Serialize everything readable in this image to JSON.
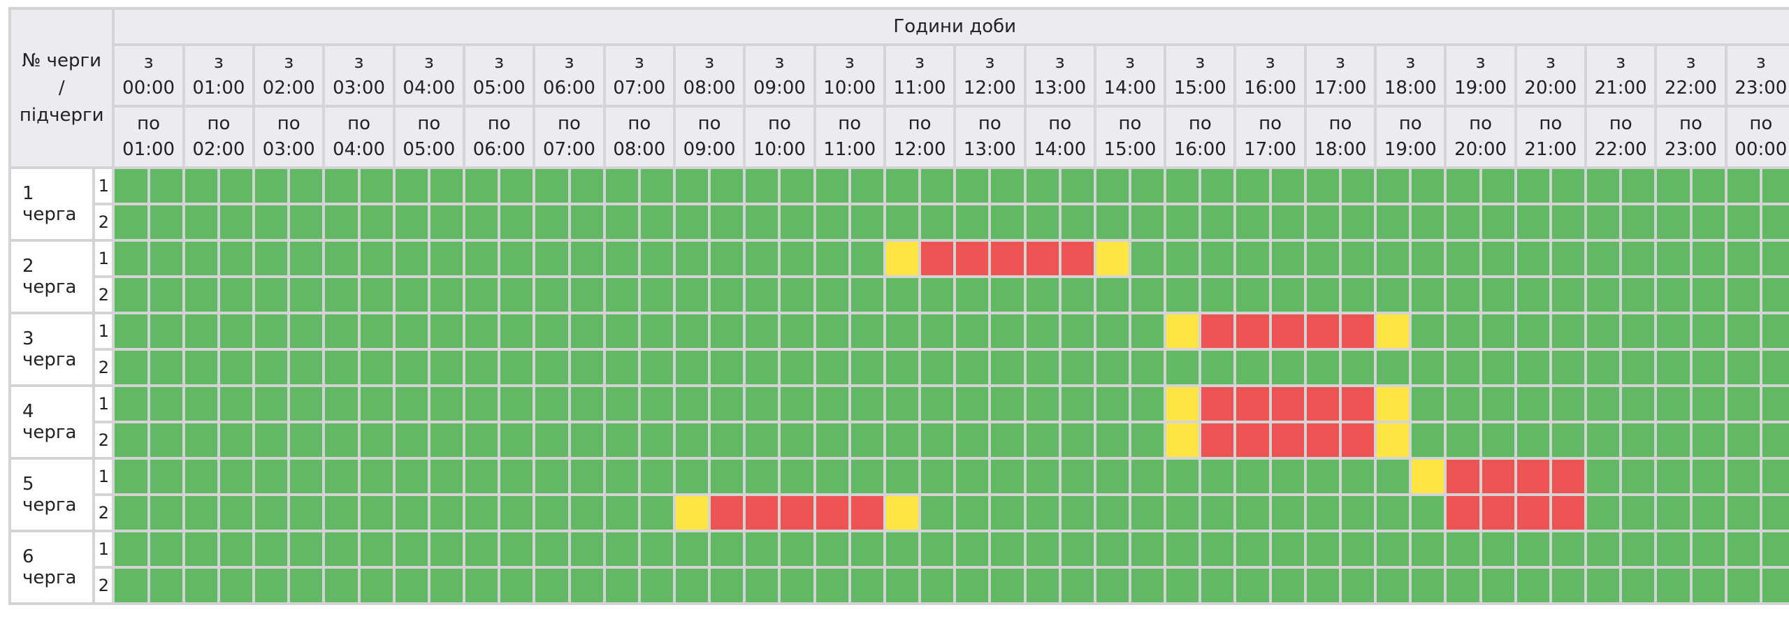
{
  "table": {
    "corner_label_lines": [
      "№ черги",
      "/",
      "підчерги"
    ],
    "title": "Години доби",
    "hours": [
      {
        "from_prefix": "з",
        "from": "00:00",
        "to_prefix": "по",
        "to": "01:00"
      },
      {
        "from_prefix": "з",
        "from": "01:00",
        "to_prefix": "по",
        "to": "02:00"
      },
      {
        "from_prefix": "з",
        "from": "02:00",
        "to_prefix": "по",
        "to": "03:00"
      },
      {
        "from_prefix": "з",
        "from": "03:00",
        "to_prefix": "по",
        "to": "04:00"
      },
      {
        "from_prefix": "з",
        "from": "04:00",
        "to_prefix": "по",
        "to": "05:00"
      },
      {
        "from_prefix": "з",
        "from": "05:00",
        "to_prefix": "по",
        "to": "06:00"
      },
      {
        "from_prefix": "з",
        "from": "06:00",
        "to_prefix": "по",
        "to": "07:00"
      },
      {
        "from_prefix": "з",
        "from": "07:00",
        "to_prefix": "по",
        "to": "08:00"
      },
      {
        "from_prefix": "з",
        "from": "08:00",
        "to_prefix": "по",
        "to": "09:00"
      },
      {
        "from_prefix": "з",
        "from": "09:00",
        "to_prefix": "по",
        "to": "10:00"
      },
      {
        "from_prefix": "з",
        "from": "10:00",
        "to_prefix": "по",
        "to": "11:00"
      },
      {
        "from_prefix": "з",
        "from": "11:00",
        "to_prefix": "по",
        "to": "12:00"
      },
      {
        "from_prefix": "з",
        "from": "12:00",
        "to_prefix": "по",
        "to": "13:00"
      },
      {
        "from_prefix": "з",
        "from": "13:00",
        "to_prefix": "по",
        "to": "14:00"
      },
      {
        "from_prefix": "з",
        "from": "14:00",
        "to_prefix": "по",
        "to": "15:00"
      },
      {
        "from_prefix": "з",
        "from": "15:00",
        "to_prefix": "по",
        "to": "16:00"
      },
      {
        "from_prefix": "з",
        "from": "16:00",
        "to_prefix": "по",
        "to": "17:00"
      },
      {
        "from_prefix": "з",
        "from": "17:00",
        "to_prefix": "по",
        "to": "18:00"
      },
      {
        "from_prefix": "з",
        "from": "18:00",
        "to_prefix": "по",
        "to": "19:00"
      },
      {
        "from_prefix": "з",
        "from": "19:00",
        "to_prefix": "по",
        "to": "20:00"
      },
      {
        "from_prefix": "з",
        "from": "20:00",
        "to_prefix": "по",
        "to": "21:00"
      },
      {
        "from_prefix": "з",
        "from": "21:00",
        "to_prefix": "по",
        "to": "22:00"
      },
      {
        "from_prefix": "з",
        "from": "22:00",
        "to_prefix": "по",
        "to": "23:00"
      },
      {
        "from_prefix": "з",
        "from": "23:00",
        "to_prefix": "по",
        "to": "00:00"
      }
    ]
  },
  "status_colors": {
    "on": "#63b866",
    "maybe": "#fde542",
    "off": "#ee5353"
  },
  "queues": [
    {
      "label": "1 черга",
      "subqueues": [
        {
          "label": "1",
          "slots": "GGGGGGGGGGGGGGGGGGGGGGGGGGGGGGGGGGGGGGGGGGGGGGGG"
        },
        {
          "label": "2",
          "slots": "GGGGGGGGGGGGGGGGGGGGGGGGGGGGGGGGGGGGGGGGGGGGGGGG"
        }
      ]
    },
    {
      "label": "2 черга",
      "subqueues": [
        {
          "label": "1",
          "slots": "GGGGGGGGGGGGGGGGGGGGGGYRRRRRYGGGGGGGGGGGGGGGGGGG"
        },
        {
          "label": "2",
          "slots": "GGGGGGGGGGGGGGGGGGGGGGGGGGGGGGGGGGGGGGGGGGGGGGGG"
        }
      ]
    },
    {
      "label": "3 черга",
      "subqueues": [
        {
          "label": "1",
          "slots": "GGGGGGGGGGGGGGGGGGGGGGGGGGGGGGYRRRRRYGGGGGGGGGGG"
        },
        {
          "label": "2",
          "slots": "GGGGGGGGGGGGGGGGGGGGGGGGGGGGGGGGGGGGGGGGGGGGGGGG"
        }
      ]
    },
    {
      "label": "4 черга",
      "subqueues": [
        {
          "label": "1",
          "slots": "GGGGGGGGGGGGGGGGGGGGGGGGGGGGGGYRRRRRYGGGGGGGGGGG"
        },
        {
          "label": "2",
          "slots": "GGGGGGGGGGGGGGGGGGGGGGGGGGGGGGYRRRRRYGGGGGGGGGGG"
        }
      ]
    },
    {
      "label": "5 черга",
      "subqueues": [
        {
          "label": "1",
          "slots": "GGGGGGGGGGGGGGGGGGGGGGGGGGGGGGGGGGGGGYRRRRGGGGGG"
        },
        {
          "label": "2",
          "slots": "GGGGGGGGGGGGGGGGYRRRRRYGGGGGGGGGGGGGGGRRRRGGGGGG"
        }
      ]
    },
    {
      "label": "6 черга",
      "subqueues": [
        {
          "label": "1",
          "slots": "GGGGGGGGGGGGGGGGGGGGGGGGGGGGGGGGGGGGGGGGGGGGGGGG"
        },
        {
          "label": "2",
          "slots": "GGGGGGGGGGGGGGGGGGGGGGGGGGGGGGGGGGGGGGGGGGGGGGGG"
        }
      ]
    }
  ]
}
